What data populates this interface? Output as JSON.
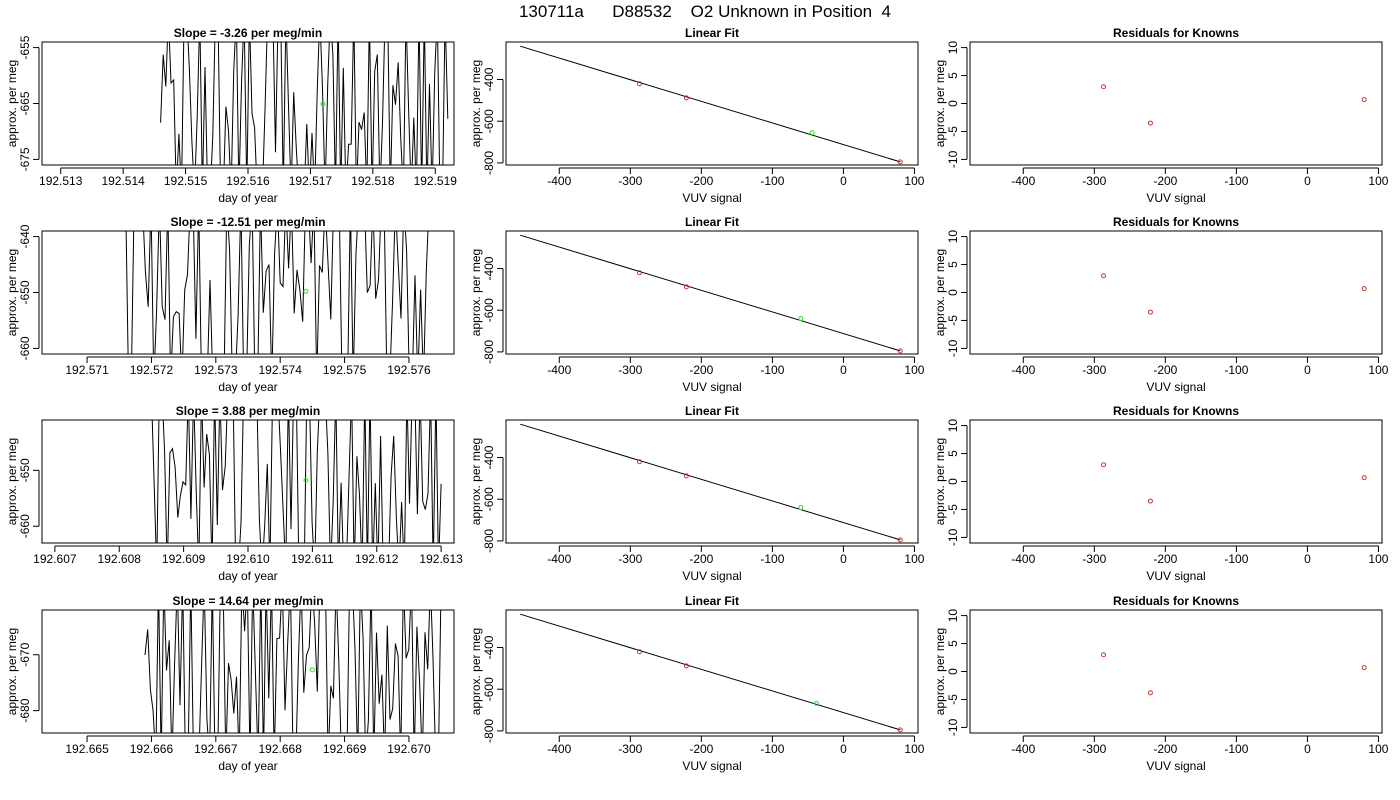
{
  "figure_title": "130711a      D88532    O2 Unknown in Position  4",
  "colors": {
    "line": "#000000",
    "known_point": "#cc3333",
    "unknown_point": "#33dd33",
    "background": "#ffffff"
  },
  "chart_data": [
    {
      "row": 1,
      "panel": "time-series",
      "type": "line",
      "title": "Slope =  -3.26  per meg/min",
      "xlabel": "day of year",
      "ylabel": "approx. per meg",
      "xlim": [
        192.5127,
        192.5193
      ],
      "ylim": [
        -676,
        -654
      ],
      "xticks": [
        192.513,
        192.514,
        192.515,
        192.516,
        192.517,
        192.518,
        192.519
      ],
      "xtick_labels": [
        "192.513",
        "192.514",
        "192.515",
        "192.516",
        "192.517",
        "192.518",
        "192.519"
      ],
      "yticks": [
        -655,
        -665,
        -675
      ],
      "ytick_labels": [
        "-655",
        "-665",
        "-675"
      ],
      "data_start": 192.5146,
      "data_end": 192.5192,
      "unknown_point": {
        "x": 192.5172,
        "y": -665.1
      }
    },
    {
      "row": 1,
      "panel": "linear-fit",
      "type": "scatter",
      "title": "Linear Fit",
      "xlabel": "VUV signal",
      "ylabel": "approx. per meg",
      "xlim": [
        -475,
        105
      ],
      "ylim": [
        -810,
        -220
      ],
      "xticks": [
        -400,
        -300,
        -200,
        -100,
        0,
        100
      ],
      "xtick_labels": [
        "-400",
        "-300",
        "-200",
        "-100",
        "0",
        "100"
      ],
      "yticks": [
        -400,
        -600,
        -800
      ],
      "ytick_labels": [
        "-400",
        "-600",
        "-800"
      ],
      "fit_line": [
        [
          -455,
          -240
        ],
        [
          80,
          -795
        ]
      ],
      "known_points": [
        [
          -287,
          -420
        ],
        [
          -221,
          -488
        ],
        [
          80,
          -795
        ]
      ],
      "unknown_point": [
        -44,
        -655
      ]
    },
    {
      "row": 1,
      "panel": "residuals",
      "type": "scatter",
      "title": "Residuals for Knowns",
      "xlabel": "VUV signal",
      "ylabel": "approx. per meg",
      "xlim": [
        -475,
        105
      ],
      "ylim": [
        -11,
        11
      ],
      "xticks": [
        -400,
        -300,
        -200,
        -100,
        0,
        100
      ],
      "xtick_labels": [
        "-400",
        "-300",
        "-200",
        "-100",
        "0",
        "100"
      ],
      "yticks": [
        10,
        5,
        0,
        -5,
        -10
      ],
      "ytick_labels": [
        "10",
        "5",
        "0",
        "-5",
        "-10"
      ],
      "points": [
        [
          -287,
          3.0
        ],
        [
          -221,
          -3.5
        ],
        [
          80,
          0.7
        ]
      ]
    },
    {
      "row": 2,
      "panel": "time-series",
      "type": "line",
      "title": "Slope =  -12.51  per meg/min",
      "xlabel": "day of year",
      "ylabel": "approx. per meg",
      "xlim": [
        192.5703,
        192.5767
      ],
      "ylim": [
        -661,
        -639
      ],
      "xticks": [
        192.571,
        192.572,
        192.573,
        192.574,
        192.575,
        192.576
      ],
      "xtick_labels": [
        "192.571",
        "192.572",
        "192.573",
        "192.574",
        "192.575",
        "192.576"
      ],
      "yticks": [
        -640,
        -650,
        -660
      ],
      "ytick_labels": [
        "-640",
        "-650",
        "-660"
      ],
      "data_start": 192.5716,
      "data_end": 192.5764,
      "unknown_point": {
        "x": 192.5744,
        "y": -649.8
      }
    },
    {
      "row": 2,
      "panel": "linear-fit",
      "type": "scatter",
      "title": "Linear Fit",
      "xlabel": "VUV signal",
      "ylabel": "approx. per meg",
      "xlim": [
        -475,
        105
      ],
      "ylim": [
        -810,
        -220
      ],
      "xticks": [
        -400,
        -300,
        -200,
        -100,
        0,
        100
      ],
      "xtick_labels": [
        "-400",
        "-300",
        "-200",
        "-100",
        "0",
        "100"
      ],
      "yticks": [
        -400,
        -600,
        -800
      ],
      "ytick_labels": [
        "-400",
        "-600",
        "-800"
      ],
      "fit_line": [
        [
          -455,
          -240
        ],
        [
          80,
          -795
        ]
      ],
      "known_points": [
        [
          -287,
          -420
        ],
        [
          -221,
          -488
        ],
        [
          80,
          -795
        ]
      ],
      "unknown_point": [
        -60,
        -640
      ]
    },
    {
      "row": 2,
      "panel": "residuals",
      "type": "scatter",
      "title": "Residuals for Knowns",
      "xlabel": "VUV signal",
      "ylabel": "approx. per meg",
      "xlim": [
        -475,
        105
      ],
      "ylim": [
        -11,
        11
      ],
      "xticks": [
        -400,
        -300,
        -200,
        -100,
        0,
        100
      ],
      "xtick_labels": [
        "-400",
        "-300",
        "-200",
        "-100",
        "0",
        "100"
      ],
      "yticks": [
        10,
        5,
        0,
        -5,
        -10
      ],
      "ytick_labels": [
        "10",
        "5",
        "0",
        "-5",
        "-10"
      ],
      "points": [
        [
          -287,
          3.0
        ],
        [
          -221,
          -3.5
        ],
        [
          80,
          0.7
        ]
      ]
    },
    {
      "row": 3,
      "panel": "time-series",
      "type": "line",
      "title": "Slope =  3.88  per meg/min",
      "xlabel": "day of year",
      "ylabel": "approx. per meg",
      "xlim": [
        192.6068,
        192.6132
      ],
      "ylim": [
        -663,
        -641
      ],
      "xticks": [
        192.607,
        192.608,
        192.609,
        192.61,
        192.611,
        192.612,
        192.613
      ],
      "xtick_labels": [
        "192.607",
        "192.608",
        "192.609",
        "192.610",
        "192.611",
        "192.612",
        "192.613"
      ],
      "yticks": [
        -650,
        -660
      ],
      "ytick_labels": [
        "-650",
        "-660"
      ],
      "data_start": 192.6085,
      "data_end": 192.613,
      "unknown_point": {
        "x": 192.6109,
        "y": -651.8
      }
    },
    {
      "row": 3,
      "panel": "linear-fit",
      "type": "scatter",
      "title": "Linear Fit",
      "xlabel": "VUV signal",
      "ylabel": "approx. per meg",
      "xlim": [
        -475,
        105
      ],
      "ylim": [
        -810,
        -220
      ],
      "xticks": [
        -400,
        -300,
        -200,
        -100,
        0,
        100
      ],
      "xtick_labels": [
        "-400",
        "-300",
        "-200",
        "-100",
        "0",
        "100"
      ],
      "yticks": [
        -400,
        -600,
        -800
      ],
      "ytick_labels": [
        "-400",
        "-600",
        "-800"
      ],
      "fit_line": [
        [
          -455,
          -240
        ],
        [
          80,
          -795
        ]
      ],
      "known_points": [
        [
          -287,
          -420
        ],
        [
          -221,
          -488
        ],
        [
          80,
          -795
        ]
      ],
      "unknown_point": [
        -60,
        -640
      ]
    },
    {
      "row": 3,
      "panel": "residuals",
      "type": "scatter",
      "title": "Residuals for Knowns",
      "xlabel": "VUV signal",
      "ylabel": "approx. per meg",
      "xlim": [
        -475,
        105
      ],
      "ylim": [
        -11,
        11
      ],
      "xticks": [
        -400,
        -300,
        -200,
        -100,
        0,
        100
      ],
      "xtick_labels": [
        "-400",
        "-300",
        "-200",
        "-100",
        "0",
        "100"
      ],
      "yticks": [
        10,
        5,
        0,
        -5,
        -10
      ],
      "ytick_labels": [
        "10",
        "5",
        "0",
        "-5",
        "-10"
      ],
      "points": [
        [
          -287,
          3.0
        ],
        [
          -221,
          -3.5
        ],
        [
          80,
          0.7
        ]
      ]
    },
    {
      "row": 4,
      "panel": "time-series",
      "type": "line",
      "title": "Slope =  14.64  per meg/min",
      "xlabel": "day of year",
      "ylabel": "approx. per meg",
      "xlim": [
        192.6643,
        192.6707
      ],
      "ylim": [
        -684,
        -662
      ],
      "xticks": [
        192.665,
        192.666,
        192.667,
        192.668,
        192.669,
        192.67
      ],
      "xtick_labels": [
        "192.665",
        "192.666",
        "192.667",
        "192.668",
        "192.669",
        "192.670"
      ],
      "yticks": [
        -670,
        -680
      ],
      "ytick_labels": [
        "-670",
        "-680"
      ],
      "data_start": 192.6659,
      "data_end": 192.6705,
      "unknown_point": {
        "x": 192.6685,
        "y": -672.7
      }
    },
    {
      "row": 4,
      "panel": "linear-fit",
      "type": "scatter",
      "title": "Linear Fit",
      "xlabel": "VUV signal",
      "ylabel": "approx. per meg",
      "xlim": [
        -475,
        105
      ],
      "ylim": [
        -810,
        -220
      ],
      "xticks": [
        -400,
        -300,
        -200,
        -100,
        0,
        100
      ],
      "xtick_labels": [
        "-400",
        "-300",
        "-200",
        "-100",
        "0",
        "100"
      ],
      "yticks": [
        -400,
        -600,
        -800
      ],
      "ytick_labels": [
        "-400",
        "-600",
        "-800"
      ],
      "fit_line": [
        [
          -455,
          -240
        ],
        [
          80,
          -795
        ]
      ],
      "known_points": [
        [
          -287,
          -420
        ],
        [
          -221,
          -488
        ],
        [
          80,
          -795
        ]
      ],
      "unknown_point": [
        -38,
        -668
      ]
    },
    {
      "row": 4,
      "panel": "residuals",
      "type": "scatter",
      "title": "Residuals for Knowns",
      "xlabel": "VUV signal",
      "ylabel": "approx. per meg",
      "xlim": [
        -475,
        105
      ],
      "ylim": [
        -11,
        11
      ],
      "xticks": [
        -400,
        -300,
        -200,
        -100,
        0,
        100
      ],
      "xtick_labels": [
        "-400",
        "-300",
        "-200",
        "-100",
        "0",
        "100"
      ],
      "yticks": [
        10,
        5,
        0,
        -5,
        -10
      ],
      "ytick_labels": [
        "10",
        "5",
        "0",
        "-5",
        "-10"
      ],
      "points": [
        [
          -287,
          3.0
        ],
        [
          -221,
          -3.8
        ],
        [
          80,
          0.7
        ]
      ]
    }
  ]
}
